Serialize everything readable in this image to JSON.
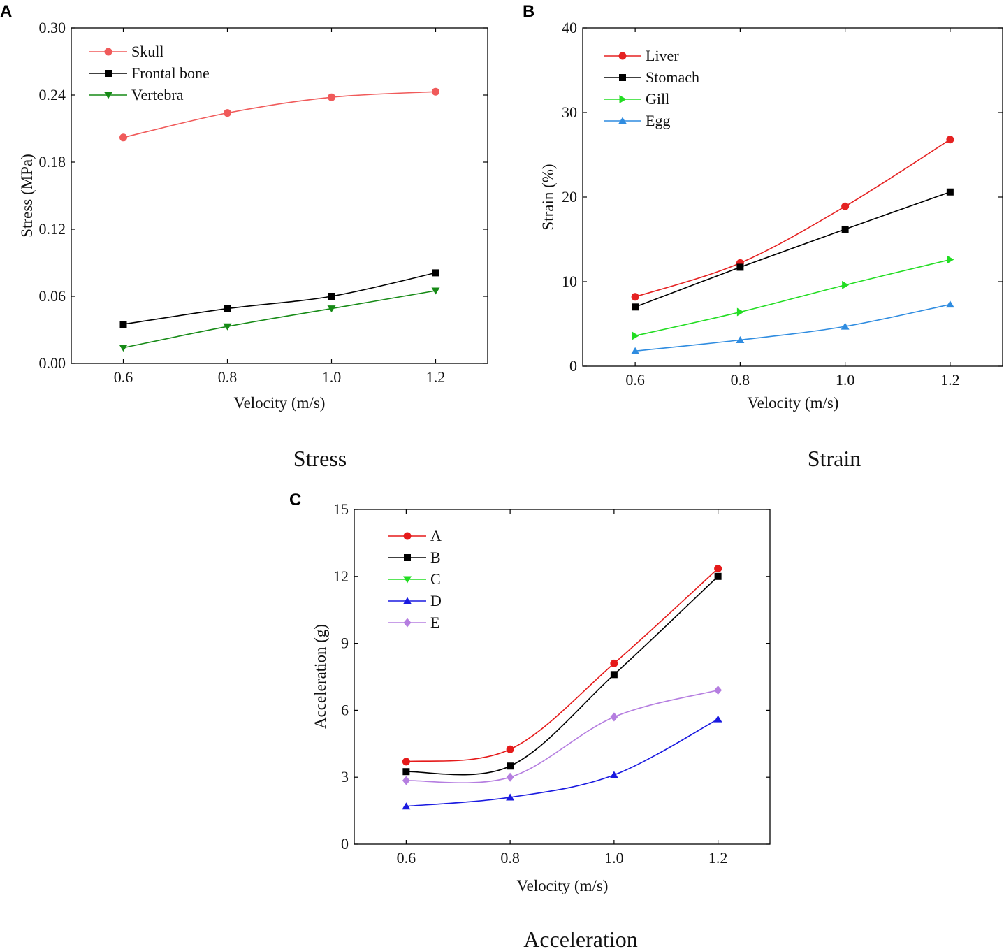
{
  "chart_data": [
    {
      "panel": "A",
      "type": "line",
      "caption": "Stress",
      "xlabel": "Velocity (m/s)",
      "ylabel": "Stress (MPa)",
      "x": [
        0.6,
        0.8,
        1.0,
        1.2
      ],
      "xticks": [
        "0.6",
        "0.8",
        "1.0",
        "1.2"
      ],
      "xlim": [
        0.5,
        1.3
      ],
      "ylim": [
        0,
        0.3
      ],
      "yticks": [
        "0.00",
        "0.06",
        "0.12",
        "0.18",
        "0.24",
        "0.30"
      ],
      "legend_position": "top-left",
      "series": [
        {
          "name": "Skull",
          "color": "#f05a5a",
          "marker": "circle",
          "values": [
            0.202,
            0.224,
            0.238,
            0.243
          ]
        },
        {
          "name": "Frontal bone",
          "color": "#000000",
          "marker": "square",
          "values": [
            0.035,
            0.049,
            0.06,
            0.081
          ]
        },
        {
          "name": "Vertebra",
          "color": "#168a16",
          "marker": "triangle-down",
          "values": [
            0.014,
            0.033,
            0.049,
            0.065
          ]
        }
      ]
    },
    {
      "panel": "B",
      "type": "line",
      "caption": "Strain",
      "xlabel": "Velocity (m/s)",
      "ylabel": "Strain (%)",
      "x": [
        0.6,
        0.8,
        1.0,
        1.2
      ],
      "xticks": [
        "0.6",
        "0.8",
        "1.0",
        "1.2"
      ],
      "xlim": [
        0.5,
        1.3
      ],
      "ylim": [
        0,
        40
      ],
      "yticks": [
        "0",
        "10",
        "20",
        "30",
        "40"
      ],
      "legend_position": "top-left",
      "series": [
        {
          "name": "Liver",
          "color": "#e52222",
          "marker": "circle",
          "values": [
            8.2,
            12.2,
            18.9,
            26.8
          ]
        },
        {
          "name": "Stomach",
          "color": "#000000",
          "marker": "square",
          "values": [
            7.0,
            11.7,
            16.2,
            20.6
          ]
        },
        {
          "name": "Gill",
          "color": "#22dd22",
          "marker": "triangle-right",
          "values": [
            3.6,
            6.4,
            9.6,
            12.6
          ]
        },
        {
          "name": "Egg",
          "color": "#2f8ce0",
          "marker": "triangle-up",
          "values": [
            1.8,
            3.1,
            4.7,
            7.3
          ]
        }
      ]
    },
    {
      "panel": "C",
      "type": "line",
      "caption": "Acceleration",
      "xlabel": "Velocity (m/s)",
      "ylabel": "Acceleration (g)",
      "x": [
        0.6,
        0.8,
        1.0,
        1.2
      ],
      "xticks": [
        "0.6",
        "0.8",
        "1.0",
        "1.2"
      ],
      "xlim": [
        0.5,
        1.3
      ],
      "ylim": [
        0,
        15
      ],
      "yticks": [
        "0",
        "3",
        "6",
        "9",
        "12",
        "15"
      ],
      "legend_position": "top-left",
      "series": [
        {
          "name": "A",
          "color": "#e51a1a",
          "marker": "circle",
          "values": [
            3.7,
            4.25,
            8.1,
            12.35
          ]
        },
        {
          "name": "B",
          "color": "#000000",
          "marker": "square",
          "values": [
            3.25,
            3.5,
            7.6,
            12.0
          ]
        },
        {
          "name": "C",
          "color": "#22dd22",
          "marker": "triangle-down",
          "values": [
            null,
            null,
            null,
            null
          ]
        },
        {
          "name": "D",
          "color": "#1a1ae0",
          "marker": "triangle-up",
          "values": [
            1.7,
            2.1,
            3.1,
            5.6
          ]
        },
        {
          "name": "E",
          "color": "#b57ee0",
          "marker": "diamond",
          "values": [
            2.85,
            3.0,
            5.7,
            6.9
          ]
        }
      ]
    }
  ]
}
